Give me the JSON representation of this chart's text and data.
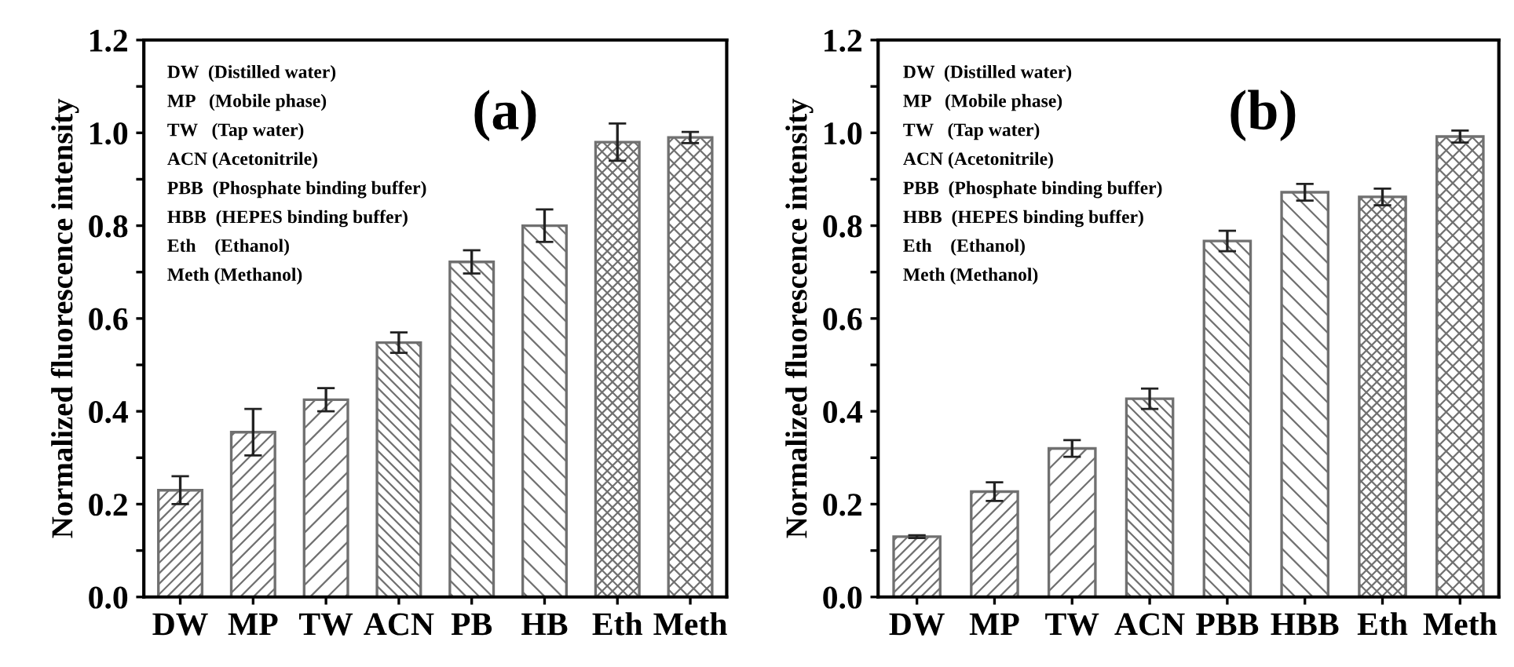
{
  "chart_data": [
    {
      "type": "bar",
      "title": "(a)",
      "ylabel": "Normalized fluorescence intensity",
      "categories": [
        "DW",
        "MP",
        "TW",
        "ACN",
        "PB",
        "HB",
        "Eth",
        "Meth"
      ],
      "values": [
        0.23,
        0.355,
        0.425,
        0.548,
        0.722,
        0.8,
        0.98,
        0.99
      ],
      "errors": [
        0.03,
        0.05,
        0.025,
        0.022,
        0.025,
        0.035,
        0.04,
        0.012
      ],
      "color": "#707070",
      "ylim": [
        0,
        1.2
      ],
      "yticks": [
        {
          "value": 0,
          "label": "0.0"
        },
        {
          "value": 0.1,
          "label": null
        },
        0.2,
        {
          "value": 0.3,
          "label": null
        },
        0.4,
        {
          "value": 0.5,
          "label": null
        },
        0.6,
        {
          "value": 0.7,
          "label": null
        },
        0.8,
        {
          "value": 0.9,
          "label": null
        },
        {
          "value": 1,
          "label": "1.0"
        },
        {
          "value": 1.1,
          "label": null
        },
        1.2
      ],
      "annotations": [
        "DW  (Distilled water)",
        "MP   (Mobile phase)",
        "TW   (Tap water)",
        "ACN (Acetonitrile)",
        "PBB  (Phosphate binding buffer)",
        "HBB  (HEPES binding buffer)",
        "Eth    (Ethanol)",
        "Meth (Methanol)"
      ],
      "grid": false,
      "legend": false
    },
    {
      "type": "bar",
      "title": "(b)",
      "ylabel": "Normalized fluorescence intensity",
      "categories": [
        "DW",
        "MP",
        "TW",
        "ACN",
        "PBB",
        "HBB",
        "Eth",
        "Meth"
      ],
      "values": [
        0.13,
        0.227,
        0.32,
        0.427,
        0.767,
        0.872,
        0.862,
        0.992
      ],
      "errors": [
        0.003,
        0.02,
        0.018,
        0.022,
        0.022,
        0.018,
        0.018,
        0.013
      ],
      "color": "#707070",
      "ylim": [
        0,
        1.2
      ],
      "yticks": [
        {
          "value": 0,
          "label": "0.0"
        },
        {
          "value": 0.1,
          "label": null
        },
        0.2,
        {
          "value": 0.3,
          "label": null
        },
        0.4,
        {
          "value": 0.5,
          "label": null
        },
        0.6,
        {
          "value": 0.7,
          "label": null
        },
        0.8,
        {
          "value": 0.9,
          "label": null
        },
        {
          "value": 1,
          "label": "1.0"
        },
        {
          "value": 1.1,
          "label": null
        },
        1.2
      ],
      "annotations": [
        "DW  (Distilled water)",
        "MP   (Mobile phase)",
        "TW   (Tap water)",
        "ACN (Acetonitrile)",
        "PBB  (Phosphate binding buffer)",
        "HBB  (HEPES binding buffer)",
        "Eth    (Ethanol)",
        "Meth (Methanol)"
      ],
      "grid": false,
      "legend": false
    }
  ]
}
